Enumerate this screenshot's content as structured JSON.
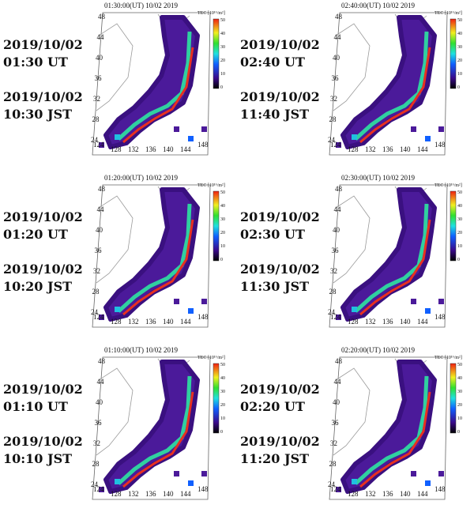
{
  "panels": [
    {
      "map_title": "01:30:00(UT)  10/02 2019",
      "date": "2019/10/02",
      "ut": "01:30 UT",
      "jst": "10:30 JST",
      "lat_labels": [
        "48",
        "44",
        "40",
        "36",
        "32",
        "28",
        "24"
      ],
      "lon_labels": [
        "124",
        "128",
        "132",
        "136",
        "140",
        "144",
        "148"
      ],
      "colorbar_label": "TEC [10¹⁶/m²]",
      "colorbar_ticks": [
        "50",
        "40",
        "30",
        "20",
        "10",
        "0"
      ]
    },
    {
      "map_title": "02:40:00(UT)  10/02 2019",
      "date": "2019/10/02",
      "ut": "02:40 UT",
      "jst": "11:40 JST",
      "lat_labels": [
        "48",
        "44",
        "40",
        "36",
        "32",
        "28",
        "24"
      ],
      "lon_labels": [
        "124",
        "128",
        "132",
        "136",
        "140",
        "144",
        "148"
      ],
      "colorbar_label": "TEC [10¹⁶/m²]",
      "colorbar_ticks": [
        "50",
        "40",
        "30",
        "20",
        "10",
        "0"
      ]
    },
    {
      "map_title": "01:20:00(UT)  10/02 2019",
      "date": "2019/10/02",
      "ut": "01:20 UT",
      "jst": "10:20 JST",
      "lat_labels": [
        "48",
        "44",
        "40",
        "36",
        "32",
        "28",
        "24"
      ],
      "lon_labels": [
        "124",
        "128",
        "132",
        "136",
        "140",
        "144",
        "148"
      ],
      "colorbar_label": "TEC [10¹⁶/m²]",
      "colorbar_ticks": [
        "50",
        "40",
        "30",
        "20",
        "10",
        "0"
      ]
    },
    {
      "map_title": "02:30:00(UT)  10/02 2019",
      "date": "2019/10/02",
      "ut": "02:30 UT",
      "jst": "11:30 JST",
      "lat_labels": [
        "48",
        "44",
        "40",
        "36",
        "32",
        "28",
        "24"
      ],
      "lon_labels": [
        "124",
        "128",
        "132",
        "136",
        "140",
        "144",
        "148"
      ],
      "colorbar_label": "TEC [10¹⁶/m²]",
      "colorbar_ticks": [
        "50",
        "40",
        "30",
        "20",
        "10",
        "0"
      ]
    },
    {
      "map_title": "01:10:00(UT)  10/02 2019",
      "date": "2019/10/02",
      "ut": "01:10 UT",
      "jst": "10:10 JST",
      "lat_labels": [
        "48",
        "44",
        "40",
        "36",
        "32",
        "28",
        "24"
      ],
      "lon_labels": [
        "124",
        "128",
        "132",
        "136",
        "140",
        "144",
        "148"
      ],
      "colorbar_label": "TEC [10¹⁶/m²]",
      "colorbar_ticks": [
        "50",
        "40",
        "30",
        "20",
        "10",
        "0"
      ]
    },
    {
      "map_title": "02:20:00(UT)  10/02 2019",
      "date": "2019/10/02",
      "ut": "02:20 UT",
      "jst": "11:20 JST",
      "lat_labels": [
        "48",
        "44",
        "40",
        "36",
        "32",
        "28",
        "24"
      ],
      "lon_labels": [
        "124",
        "128",
        "132",
        "136",
        "140",
        "144",
        "148"
      ],
      "colorbar_label": "TEC [10¹⁶/m²]",
      "colorbar_ticks": [
        "50",
        "40",
        "30",
        "20",
        "10",
        "0"
      ]
    }
  ]
}
